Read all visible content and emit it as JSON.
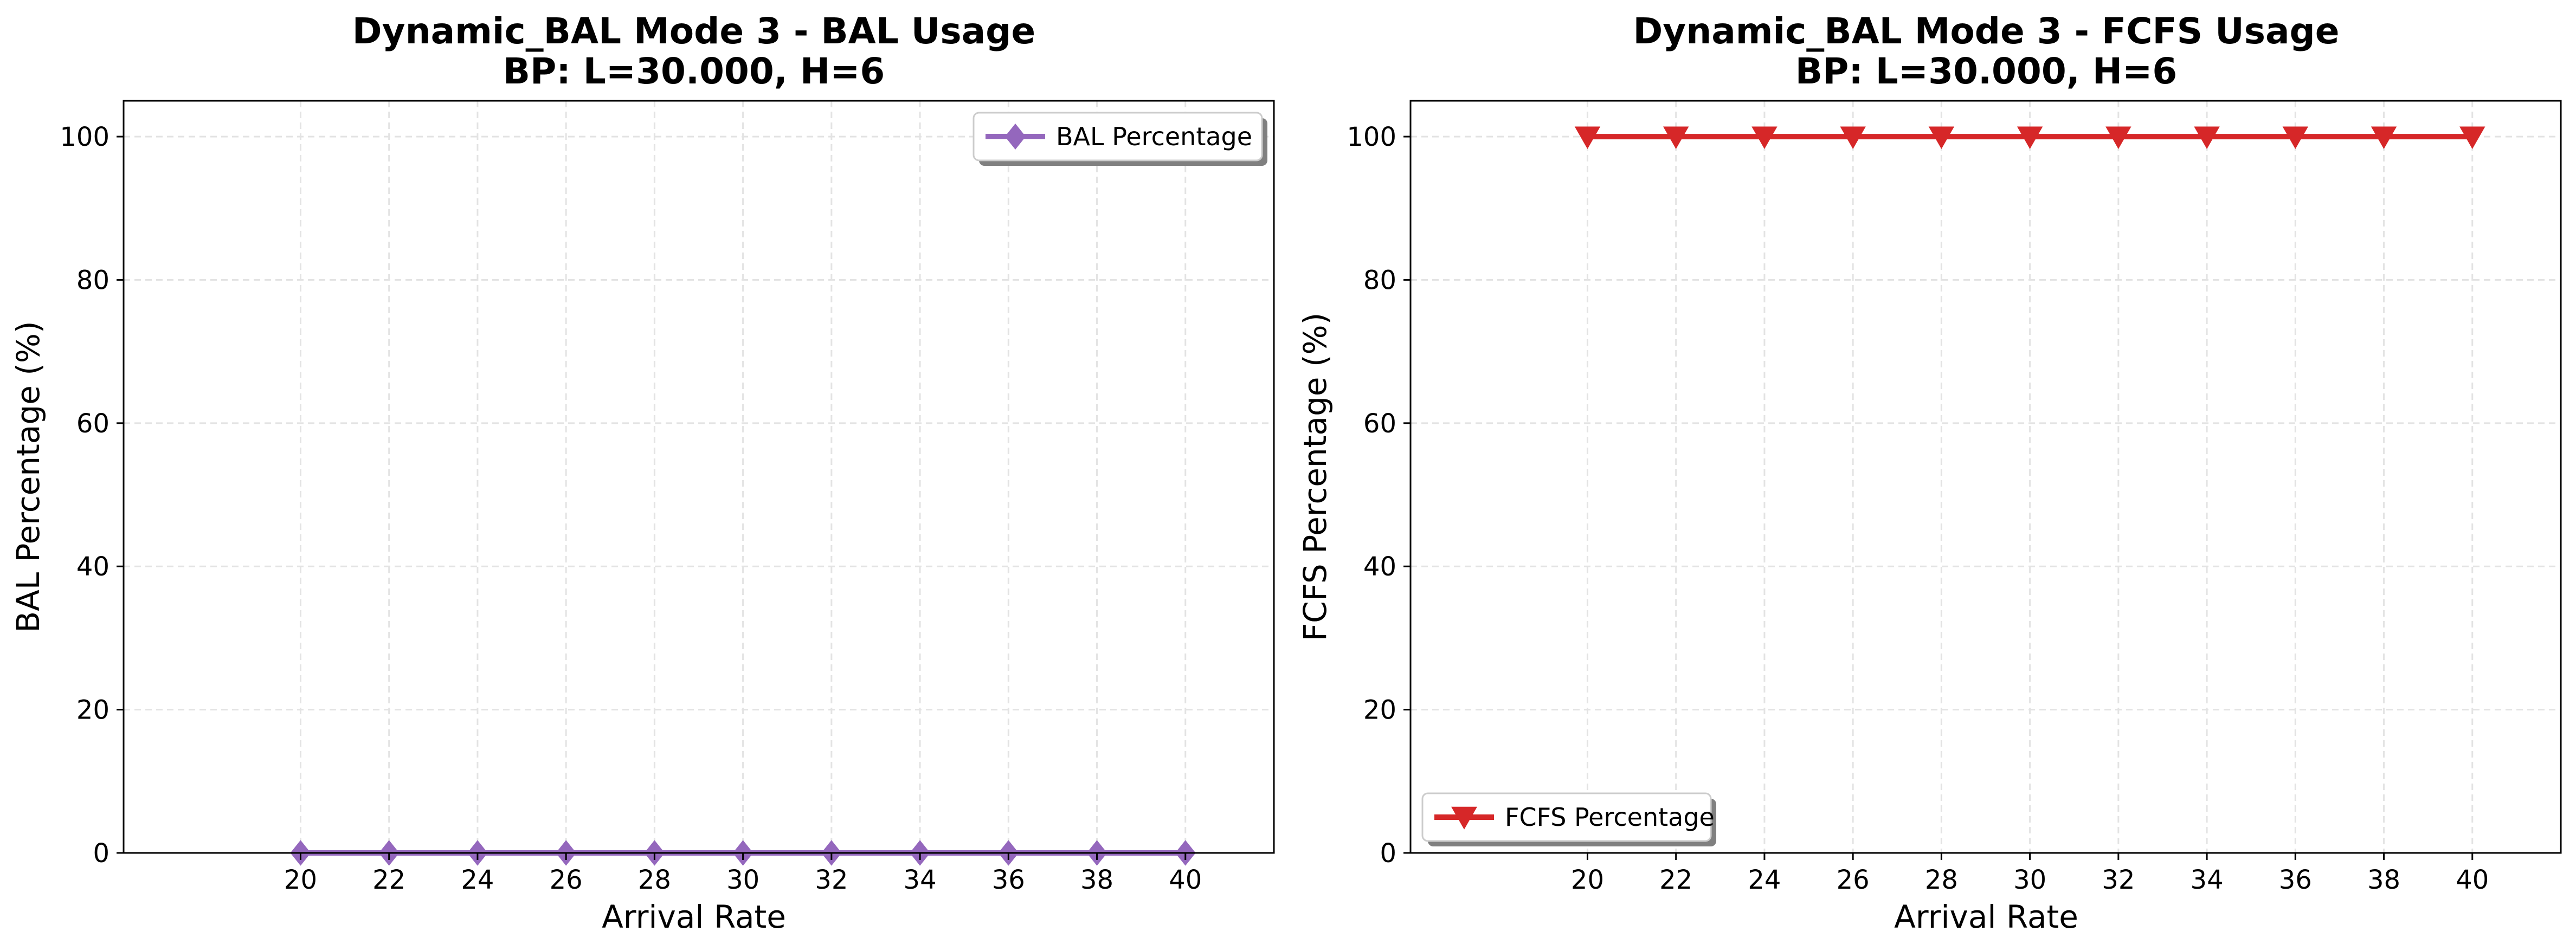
{
  "chart_data": [
    {
      "type": "line",
      "title": "Dynamic_BAL Mode 3 - BAL Usage",
      "subtitle": "BP: L=30.000, H=6",
      "xlabel": "Arrival Rate",
      "ylabel": "BAL Percentage (%)",
      "x": [
        20,
        22,
        24,
        26,
        28,
        30,
        32,
        34,
        36,
        38,
        40
      ],
      "x_ticks": [
        "20",
        "22",
        "24",
        "26",
        "28",
        "30",
        "32",
        "34",
        "36",
        "38",
        "40"
      ],
      "y_ticks": [
        "0",
        "20",
        "40",
        "60",
        "80",
        "100"
      ],
      "xlim": [
        16,
        42
      ],
      "ylim": [
        0,
        105
      ],
      "grid": true,
      "legend_position": "top-right",
      "series": [
        {
          "name": "BAL Percentage",
          "values": [
            0,
            0,
            0,
            0,
            0,
            0,
            0,
            0,
            0,
            0,
            0
          ],
          "color": "#9467bd",
          "marker": "diamond"
        }
      ]
    },
    {
      "type": "line",
      "title": "Dynamic_BAL Mode 3 - FCFS Usage",
      "subtitle": "BP: L=30.000, H=6",
      "xlabel": "Arrival Rate",
      "ylabel": "FCFS Percentage (%)",
      "x": [
        20,
        22,
        24,
        26,
        28,
        30,
        32,
        34,
        36,
        38,
        40
      ],
      "x_ticks": [
        "20",
        "22",
        "24",
        "26",
        "28",
        "30",
        "32",
        "34",
        "36",
        "38",
        "40"
      ],
      "y_ticks": [
        "0",
        "20",
        "40",
        "60",
        "80",
        "100"
      ],
      "xlim": [
        16,
        42
      ],
      "ylim": [
        0,
        105
      ],
      "grid": true,
      "legend_position": "bottom-left",
      "series": [
        {
          "name": "FCFS Percentage",
          "values": [
            100,
            100,
            100,
            100,
            100,
            100,
            100,
            100,
            100,
            100,
            100
          ],
          "color": "#d62728",
          "marker": "triangle-down"
        }
      ]
    }
  ]
}
